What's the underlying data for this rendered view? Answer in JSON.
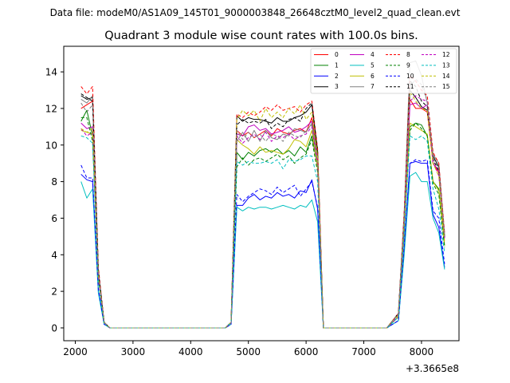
{
  "figure": {
    "suptitle": "Data file: modeM0/AS1A09_145T01_9000003848_26648cztM0_level2_quad_clean.evt"
  },
  "chart_data": {
    "type": "line",
    "title": "Quadrant 3 module wise count rates with 100.0s bins.",
    "xlabel": "",
    "ylabel": "",
    "x_offset_label": "+3.3665e8",
    "xlim": [
      1800,
      8650
    ],
    "ylim": [
      -0.7,
      15.4
    ],
    "x_ticks": [
      2000,
      3000,
      4000,
      5000,
      6000,
      7000,
      8000
    ],
    "y_ticks": [
      0,
      2,
      4,
      6,
      8,
      10,
      12,
      14
    ],
    "grid": false,
    "legend": {
      "placement": "top-right",
      "columns": 4
    },
    "x": [
      2100,
      2200,
      2300,
      2400,
      2500,
      2600,
      2700,
      2800,
      2900,
      3000,
      3100,
      3200,
      3300,
      3400,
      3500,
      3600,
      3700,
      3800,
      3900,
      4000,
      4100,
      4200,
      4300,
      4400,
      4500,
      4600,
      4700,
      4800,
      4900,
      5000,
      5100,
      5200,
      5300,
      5400,
      5500,
      5600,
      5700,
      5800,
      5900,
      6000,
      6100,
      6200,
      6300,
      6400,
      6500,
      6600,
      6700,
      6800,
      6900,
      7000,
      7100,
      7200,
      7300,
      7400,
      7500,
      7600,
      7700,
      7800,
      7900,
      8000,
      8100,
      8200,
      8300,
      8400
    ],
    "series": [
      {
        "name": "0",
        "color": "#ff0000",
        "dash": "solid",
        "values": [
          12.0,
          12.2,
          12.4,
          3.0,
          0.3,
          0,
          0,
          0,
          0,
          0,
          0,
          0,
          0,
          0,
          0,
          0,
          0,
          0,
          0,
          0,
          0,
          0,
          0,
          0,
          0,
          0,
          0.3,
          10.8,
          10.5,
          10.7,
          10.4,
          10.6,
          10.8,
          10.5,
          10.9,
          10.7,
          10.6,
          10.8,
          10.9,
          10.7,
          11.5,
          9.4,
          0,
          0,
          0,
          0,
          0,
          0,
          0,
          0,
          0,
          0,
          0,
          0,
          0.4,
          0.8,
          6.0,
          12.5,
          12.0,
          12.0,
          11.8,
          9.0,
          8.5,
          5.0
        ]
      },
      {
        "name": "1",
        "color": "#008000",
        "dash": "solid",
        "values": [
          11.3,
          11.9,
          10.5,
          2.7,
          0.3,
          0,
          0,
          0,
          0,
          0,
          0,
          0,
          0,
          0,
          0,
          0,
          0,
          0,
          0,
          0,
          0,
          0,
          0,
          0,
          0,
          0,
          0.3,
          9.6,
          9.2,
          9.6,
          9.4,
          9.7,
          9.8,
          9.6,
          9.8,
          9.5,
          9.7,
          9.4,
          9.9,
          9.6,
          10.5,
          8.8,
          0,
          0,
          0,
          0,
          0,
          0,
          0,
          0,
          0,
          0,
          0,
          0,
          0.3,
          0.6,
          5.2,
          11.0,
          11.2,
          11.1,
          10.5,
          8.0,
          7.6,
          4.5
        ]
      },
      {
        "name": "2",
        "color": "#0000ff",
        "dash": "solid",
        "values": [
          8.4,
          8.1,
          8.0,
          2.0,
          0.2,
          0,
          0,
          0,
          0,
          0,
          0,
          0,
          0,
          0,
          0,
          0,
          0,
          0,
          0,
          0,
          0,
          0,
          0,
          0,
          0,
          0,
          0.2,
          6.7,
          6.7,
          7.1,
          7.3,
          7.0,
          7.2,
          7.1,
          7.4,
          7.2,
          7.3,
          7.1,
          7.5,
          7.4,
          8.1,
          6.5,
          0,
          0,
          0,
          0,
          0,
          0,
          0,
          0,
          0,
          0,
          0,
          0,
          0.2,
          0.4,
          4.3,
          9.0,
          9.1,
          9.0,
          9.0,
          6.2,
          5.5,
          3.3
        ]
      },
      {
        "name": "3",
        "color": "#000000",
        "dash": "solid",
        "values": [
          12.7,
          12.5,
          12.6,
          3.1,
          0.3,
          0,
          0,
          0,
          0,
          0,
          0,
          0,
          0,
          0,
          0,
          0,
          0,
          0,
          0,
          0,
          0,
          0,
          0,
          0,
          0,
          0,
          0.3,
          11.6,
          11.3,
          11.5,
          11.4,
          11.4,
          11.3,
          11.2,
          11.5,
          11.3,
          11.3,
          11.5,
          11.6,
          11.8,
          12.2,
          9.6,
          0,
          0,
          0,
          0,
          0,
          0,
          0,
          0,
          0,
          0,
          0,
          0,
          0.4,
          0.7,
          6.2,
          13.0,
          12.6,
          12.1,
          11.9,
          9.4,
          8.8,
          5.0
        ]
      },
      {
        "name": "4",
        "color": "#bf00bf",
        "dash": "solid",
        "values": [
          11.2,
          10.9,
          11.0,
          2.8,
          0.3,
          0,
          0,
          0,
          0,
          0,
          0,
          0,
          0,
          0,
          0,
          0,
          0,
          0,
          0,
          0,
          0,
          0,
          0,
          0,
          0,
          0,
          0.3,
          10.6,
          10.5,
          11.0,
          11.1,
          10.8,
          10.9,
          10.6,
          10.7,
          10.8,
          11.0,
          10.7,
          10.8,
          11.0,
          11.3,
          9.2,
          0,
          0,
          0,
          0,
          0,
          0,
          0,
          0,
          0,
          0,
          0,
          0,
          0.4,
          0.7,
          5.8,
          12.2,
          12.3,
          12.0,
          12.2,
          9.0,
          8.6,
          4.9
        ]
      },
      {
        "name": "5",
        "color": "#00bfbf",
        "dash": "solid",
        "values": [
          8.0,
          7.1,
          7.6,
          1.9,
          0.2,
          0,
          0,
          0,
          0,
          0,
          0,
          0,
          0,
          0,
          0,
          0,
          0,
          0,
          0,
          0,
          0,
          0,
          0,
          0,
          0,
          0,
          0.2,
          6.6,
          6.4,
          6.6,
          6.5,
          6.6,
          6.6,
          6.5,
          6.6,
          6.7,
          6.6,
          6.5,
          6.7,
          6.6,
          7.0,
          5.8,
          0,
          0,
          0,
          0,
          0,
          0,
          0,
          0,
          0,
          0,
          0,
          0,
          0.2,
          0.4,
          4.0,
          8.3,
          8.5,
          8.0,
          8.0,
          6.0,
          5.2,
          3.2
        ]
      },
      {
        "name": "6",
        "color": "#bfbf00",
        "dash": "solid",
        "values": [
          10.8,
          10.7,
          10.6,
          2.7,
          0.3,
          0,
          0,
          0,
          0,
          0,
          0,
          0,
          0,
          0,
          0,
          0,
          0,
          0,
          0,
          0,
          0,
          0,
          0,
          0,
          0,
          0,
          0.3,
          10.3,
          10.0,
          9.8,
          9.5,
          9.9,
          9.6,
          9.7,
          9.6,
          9.5,
          9.8,
          10.3,
          10.2,
          9.9,
          10.8,
          8.7,
          0,
          0,
          0,
          0,
          0,
          0,
          0,
          0,
          0,
          0,
          0,
          0,
          0.3,
          0.6,
          5.3,
          11.2,
          11.0,
          10.8,
          10.6,
          8.0,
          7.5,
          4.5
        ]
      },
      {
        "name": "7",
        "color": "#808080",
        "dash": "solid",
        "values": [
          12.5,
          12.3,
          12.7,
          3.1,
          0.3,
          0,
          0,
          0,
          0,
          0,
          0,
          0,
          0,
          0,
          0,
          0,
          0,
          0,
          0,
          0,
          0,
          0,
          0,
          0,
          0,
          0,
          0.3,
          10.2,
          10.7,
          10.2,
          10.8,
          10.2,
          10.8,
          10.4,
          10.3,
          10.6,
          10.5,
          10.9,
          10.8,
          10.7,
          11.2,
          9.3,
          0,
          0,
          0,
          0,
          0,
          0,
          0,
          0,
          0,
          0,
          0,
          0,
          0.4,
          0.8,
          6.3,
          14.5,
          14.6,
          13.8,
          12.3,
          9.5,
          9.0,
          5.1
        ]
      },
      {
        "name": "8",
        "color": "#ff0000",
        "dash": "dashed",
        "values": [
          13.2,
          12.8,
          13.2,
          3.3,
          0.3,
          0,
          0,
          0,
          0,
          0,
          0,
          0,
          0,
          0,
          0,
          0,
          0,
          0,
          0,
          0,
          0,
          0,
          0,
          0,
          0,
          0,
          0.3,
          11.7,
          11.5,
          11.8,
          11.6,
          11.8,
          12.1,
          11.9,
          12.2,
          11.9,
          12.0,
          12.1,
          11.8,
          12.2,
          12.4,
          9.8,
          0,
          0,
          0,
          0,
          0,
          0,
          0,
          0,
          0,
          0,
          0,
          0,
          0.4,
          0.8,
          6.3,
          13.8,
          13.5,
          13.0,
          12.7,
          9.6,
          9.0,
          5.2
        ]
      },
      {
        "name": "9",
        "color": "#008000",
        "dash": "dashed",
        "values": [
          11.5,
          11.5,
          10.2,
          2.7,
          0.3,
          0,
          0,
          0,
          0,
          0,
          0,
          0,
          0,
          0,
          0,
          0,
          0,
          0,
          0,
          0,
          0,
          0,
          0,
          0,
          0,
          0,
          0.3,
          8.8,
          9.3,
          8.9,
          9.2,
          9.3,
          9.1,
          9.3,
          9.5,
          9.2,
          9.4,
          9.0,
          9.3,
          9.5,
          10.3,
          8.5,
          0,
          0,
          0,
          0,
          0,
          0,
          0,
          0,
          0,
          0,
          0,
          0,
          0.3,
          0.6,
          5.3,
          10.8,
          11.2,
          10.9,
          10.5,
          7.9,
          7.3,
          4.4
        ]
      },
      {
        "name": "10",
        "color": "#0000ff",
        "dash": "dashed",
        "values": [
          8.9,
          8.2,
          8.2,
          2.1,
          0.2,
          0,
          0,
          0,
          0,
          0,
          0,
          0,
          0,
          0,
          0,
          0,
          0,
          0,
          0,
          0,
          0,
          0,
          0,
          0,
          0,
          0,
          0.2,
          7.3,
          6.9,
          7.2,
          7.4,
          7.6,
          7.5,
          7.3,
          7.7,
          7.4,
          7.6,
          7.8,
          7.2,
          7.6,
          8.0,
          6.6,
          0,
          0,
          0,
          0,
          0,
          0,
          0,
          0,
          0,
          0,
          0,
          0,
          0.2,
          0.4,
          4.5,
          9.0,
          9.2,
          9.1,
          9.2,
          6.4,
          6.0,
          3.5
        ]
      },
      {
        "name": "11",
        "color": "#000000",
        "dash": "dashed",
        "values": [
          12.8,
          12.6,
          12.4,
          3.1,
          0.3,
          0,
          0,
          0,
          0,
          0,
          0,
          0,
          0,
          0,
          0,
          0,
          0,
          0,
          0,
          0,
          0,
          0,
          0,
          0,
          0,
          0,
          0.3,
          11.1,
          11.4,
          11.2,
          11.3,
          11.2,
          11.4,
          10.9,
          11.2,
          11.0,
          11.4,
          11.5,
          11.3,
          12.0,
          12.3,
          9.7,
          0,
          0,
          0,
          0,
          0,
          0,
          0,
          0,
          0,
          0,
          0,
          0,
          0.4,
          0.8,
          6.1,
          13.5,
          13.2,
          12.4,
          12.1,
          9.2,
          8.6,
          4.9
        ]
      },
      {
        "name": "12",
        "color": "#bf00bf",
        "dash": "dashed",
        "values": [
          10.9,
          10.5,
          10.7,
          2.7,
          0.3,
          0,
          0,
          0,
          0,
          0,
          0,
          0,
          0,
          0,
          0,
          0,
          0,
          0,
          0,
          0,
          0,
          0,
          0,
          0,
          0,
          0,
          0.3,
          10.5,
          10.1,
          10.4,
          10.6,
          10.3,
          10.7,
          10.2,
          10.5,
          10.4,
          10.6,
          10.3,
          10.5,
          10.6,
          11.0,
          8.9,
          0,
          0,
          0,
          0,
          0,
          0,
          0,
          0,
          0,
          0,
          0,
          0,
          0.3,
          0.7,
          5.7,
          12.4,
          12.7,
          12.5,
          12.4,
          9.1,
          8.3,
          4.8
        ]
      },
      {
        "name": "13",
        "color": "#00bfbf",
        "dash": "dashed",
        "values": [
          10.5,
          10.4,
          10.1,
          2.6,
          0.2,
          0,
          0,
          0,
          0,
          0,
          0,
          0,
          0,
          0,
          0,
          0,
          0,
          0,
          0,
          0,
          0,
          0,
          0,
          0,
          0,
          0,
          0.3,
          9.1,
          8.9,
          9.1,
          9.0,
          9.0,
          9.1,
          9.0,
          9.2,
          8.7,
          9.2,
          9.1,
          9.2,
          9.4,
          9.4,
          8.0,
          0,
          0,
          0,
          0,
          0,
          0,
          0,
          0,
          0,
          0,
          0,
          0,
          0.3,
          0.6,
          5.2,
          10.5,
          10.3,
          10.5,
          10.2,
          7.6,
          6.5,
          4.1
        ]
      },
      {
        "name": "14",
        "color": "#bfbf00",
        "dash": "dashed",
        "values": [
          10.9,
          10.7,
          10.9,
          2.8,
          0.3,
          0,
          0,
          0,
          0,
          0,
          0,
          0,
          0,
          0,
          0,
          0,
          0,
          0,
          0,
          0,
          0,
          0,
          0,
          0,
          0,
          0,
          0.3,
          11.4,
          11.9,
          11.6,
          11.9,
          11.3,
          12.0,
          11.5,
          11.8,
          11.5,
          12.0,
          11.7,
          12.2,
          11.4,
          11.8,
          9.4,
          0,
          0,
          0,
          0,
          0,
          0,
          0,
          0,
          0,
          0,
          0,
          0,
          0.4,
          0.7,
          6.0,
          12.9,
          12.4,
          12.0,
          11.9,
          9.0,
          8.3,
          4.7
        ]
      },
      {
        "name": "15",
        "color": "#808080",
        "dash": "dashed",
        "values": [
          12.3,
          11.8,
          12.2,
          3.0,
          0.3,
          0,
          0,
          0,
          0,
          0,
          0,
          0,
          0,
          0,
          0,
          0,
          0,
          0,
          0,
          0,
          0,
          0,
          0,
          0,
          0,
          0,
          0.3,
          10.8,
          10.3,
          10.7,
          10.4,
          10.6,
          10.2,
          10.6,
          10.5,
          10.2,
          10.7,
          10.5,
          10.4,
          10.8,
          11.1,
          9.0,
          0,
          0,
          0,
          0,
          0,
          0,
          0,
          0,
          0,
          0,
          0,
          0,
          0.4,
          0.8,
          6.2,
          13.2,
          13.6,
          13.3,
          12.4,
          9.3,
          8.7,
          5.0
        ]
      }
    ]
  }
}
